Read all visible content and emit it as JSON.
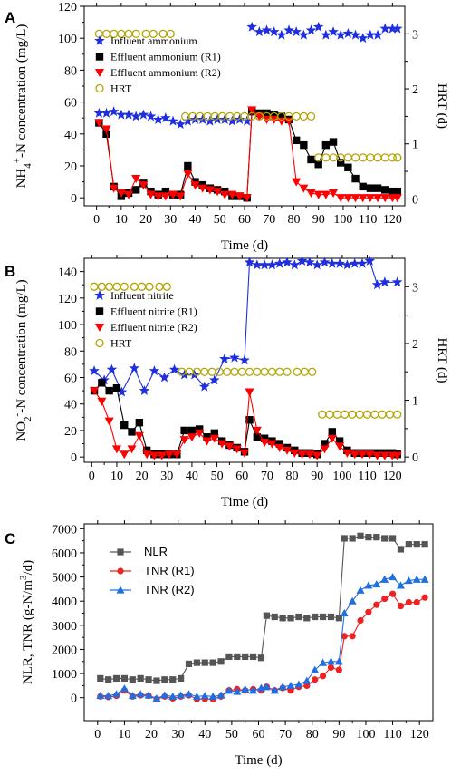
{
  "chart_data": [
    {
      "panel": "A",
      "type": "scatter",
      "xlabel": "Time (d)",
      "ylabel": "NH4+-N concentration (mg/L)",
      "ylabel_parts": {
        "pre": "NH",
        "sub": "4",
        "sup": "+",
        "post": "-N concentration (mg/L)"
      },
      "y2label": "HRT (d)",
      "xlim": [
        -5,
        125
      ],
      "ylim": [
        -5,
        120
      ],
      "y2lim": [
        -0.125,
        3.5
      ],
      "xticks": [
        0,
        10,
        20,
        30,
        40,
        50,
        60,
        70,
        80,
        90,
        100,
        110,
        120
      ],
      "yticks": [
        0,
        20,
        40,
        60,
        80,
        100,
        120
      ],
      "y2ticks": [
        0,
        1,
        2,
        3
      ],
      "series": [
        {
          "name": "Influent ammonium",
          "axis": "y",
          "marker": "star",
          "color": "#1f2fe0",
          "line": false,
          "x": [
            1,
            4,
            7,
            10,
            13,
            16,
            19,
            22,
            25,
            28,
            31,
            34,
            37,
            40,
            43,
            46,
            49,
            52,
            55,
            58,
            61,
            63,
            66,
            69,
            72,
            75,
            78,
            81,
            84,
            87,
            90,
            93,
            96,
            99,
            102,
            105,
            108,
            111,
            114,
            117,
            120,
            122
          ],
          "y": [
            53,
            53,
            54,
            52,
            52,
            51,
            52,
            51,
            49,
            50,
            48,
            46,
            48,
            49,
            49,
            48,
            49,
            49,
            48,
            49,
            48,
            107,
            104,
            105,
            104,
            102,
            105,
            104,
            102,
            105,
            107,
            102,
            104,
            102,
            103,
            102,
            100,
            102,
            102,
            106,
            106,
            106
          ]
        },
        {
          "name": "Effluent ammonium (R1)",
          "axis": "y",
          "marker": "square",
          "color": "#000000",
          "line": true,
          "x": [
            1,
            4,
            7,
            10,
            13,
            16,
            19,
            22,
            25,
            28,
            31,
            34,
            37,
            40,
            43,
            46,
            49,
            52,
            55,
            58,
            61,
            63,
            66,
            69,
            72,
            75,
            78,
            81,
            84,
            87,
            90,
            93,
            96,
            99,
            102,
            105,
            108,
            111,
            114,
            117,
            120,
            122
          ],
          "y": [
            47,
            40,
            7,
            1,
            3,
            5,
            9,
            4,
            2,
            4,
            2,
            2,
            20,
            10,
            8,
            6,
            5,
            4,
            1,
            1,
            0,
            54,
            53,
            53,
            52,
            51,
            49,
            36,
            33,
            24,
            21,
            33,
            35,
            22,
            19,
            12,
            7,
            6,
            6,
            5,
            4,
            4
          ]
        },
        {
          "name": "Effluent ammonium (R2)",
          "axis": "y",
          "marker": "triangle-down",
          "color": "#ff0000",
          "line": true,
          "x": [
            1,
            4,
            7,
            10,
            13,
            16,
            19,
            22,
            25,
            28,
            31,
            34,
            37,
            40,
            43,
            46,
            49,
            52,
            55,
            58,
            61,
            63,
            66,
            69,
            72,
            75,
            78,
            81,
            84,
            87,
            90,
            93,
            96,
            99,
            102,
            105,
            108,
            111,
            114,
            117,
            120,
            122
          ],
          "y": [
            47,
            43,
            6,
            3,
            2,
            12,
            8,
            2,
            1,
            1,
            2,
            1,
            15,
            8,
            6,
            5,
            4,
            2,
            2,
            1,
            0,
            55,
            51,
            49,
            49,
            48,
            48,
            10,
            6,
            3,
            2,
            2,
            3,
            0,
            0,
            0,
            0,
            0,
            0,
            0,
            0,
            0
          ]
        },
        {
          "name": "HRT",
          "axis": "y2",
          "marker": "circle-open",
          "color": "#b3a400",
          "line": false,
          "x": [
            1,
            4,
            7,
            10,
            13,
            16,
            20,
            23,
            27,
            30,
            36,
            39,
            42,
            45,
            48,
            51,
            54,
            57,
            60,
            63,
            66,
            69,
            72,
            75,
            78,
            81,
            84,
            87,
            90,
            93,
            96,
            99,
            102,
            105,
            108,
            111,
            114,
            117,
            120,
            122
          ],
          "y": [
            3,
            3,
            3,
            3,
            3,
            3,
            3,
            3,
            3,
            3,
            1.5,
            1.5,
            1.5,
            1.5,
            1.5,
            1.5,
            1.5,
            1.5,
            1.5,
            1.5,
            1.5,
            1.5,
            1.5,
            1.5,
            1.5,
            1.5,
            1.5,
            1.5,
            0.75,
            0.75,
            0.75,
            0.75,
            0.75,
            0.75,
            0.75,
            0.75,
            0.75,
            0.75,
            0.75,
            0.75
          ]
        }
      ]
    },
    {
      "panel": "B",
      "type": "scatter",
      "xlabel": "Time (d)",
      "ylabel": "NO2--N concentration (mg/L)",
      "ylabel_parts": {
        "pre": "NO",
        "sub": "2",
        "sup": "-",
        "post": "-N concentration (mg/L)"
      },
      "y2label": "HRT (d)",
      "xlim": [
        -3,
        125
      ],
      "ylim": [
        -4,
        150
      ],
      "y2lim": [
        -0.093,
        3.5
      ],
      "xticks": [
        0,
        10,
        20,
        30,
        40,
        50,
        60,
        70,
        80,
        90,
        100,
        110,
        120
      ],
      "yticks": [
        0,
        20,
        40,
        60,
        80,
        100,
        120,
        140
      ],
      "y2ticks": [
        0,
        1,
        2,
        3
      ],
      "series": [
        {
          "name": "Influent nitrite",
          "axis": "y",
          "marker": "star",
          "color": "#1f2fe0",
          "line": true,
          "x": [
            1,
            5,
            8,
            12,
            17,
            21,
            25,
            29,
            33,
            37,
            41,
            45,
            49,
            53,
            57,
            61,
            63,
            66,
            69,
            72,
            75,
            78,
            81,
            84,
            87,
            90,
            93,
            96,
            99,
            102,
            105,
            108,
            111,
            114,
            117,
            122
          ],
          "y": [
            65,
            58,
            66,
            49,
            67,
            50,
            65,
            60,
            66,
            62,
            62,
            53,
            58,
            74,
            75,
            73,
            147,
            145,
            145,
            145,
            146,
            147,
            145,
            148,
            147,
            145,
            147,
            146,
            146,
            145,
            146,
            146,
            148,
            130,
            132,
            132
          ]
        },
        {
          "name": "Effluent nitrite (R1)",
          "axis": "y",
          "marker": "square",
          "color": "#000000",
          "line": true,
          "x": [
            1,
            4,
            7,
            10,
            13,
            16,
            19,
            22,
            25,
            28,
            31,
            34,
            37,
            40,
            43,
            46,
            49,
            52,
            55,
            58,
            61,
            63,
            66,
            69,
            72,
            75,
            78,
            81,
            84,
            87,
            90,
            93,
            96,
            99,
            102,
            105,
            108,
            111,
            114,
            117,
            120,
            122
          ],
          "y": [
            50,
            56,
            50,
            52,
            24,
            19,
            26,
            5,
            2,
            2,
            2,
            2,
            20,
            20,
            21,
            15,
            18,
            12,
            9,
            7,
            4,
            28,
            15,
            14,
            12,
            10,
            7,
            5,
            3,
            3,
            2,
            10,
            19,
            12,
            5,
            3,
            3,
            3,
            3,
            3,
            3,
            2
          ]
        },
        {
          "name": "Effluent nitrite (R2)",
          "axis": "y",
          "marker": "triangle-down",
          "color": "#ff0000",
          "line": true,
          "x": [
            1,
            4,
            7,
            10,
            13,
            16,
            19,
            22,
            25,
            28,
            31,
            34,
            37,
            40,
            43,
            46,
            49,
            52,
            55,
            58,
            61,
            63,
            66,
            69,
            72,
            75,
            78,
            81,
            84,
            87,
            90,
            93,
            96,
            99,
            102,
            105,
            108,
            111,
            114,
            117,
            120,
            122
          ],
          "y": [
            50,
            42,
            27,
            6,
            2,
            6,
            16,
            2,
            1,
            1,
            2,
            2,
            13,
            15,
            18,
            12,
            14,
            10,
            8,
            6,
            3,
            49,
            20,
            11,
            10,
            7,
            5,
            3,
            2,
            2,
            1,
            6,
            14,
            8,
            3,
            2,
            2,
            2,
            1,
            1,
            1,
            1
          ]
        },
        {
          "name": "HRT",
          "axis": "y2",
          "marker": "circle-open",
          "color": "#b3a400",
          "line": false,
          "x": [
            1,
            4,
            7,
            10,
            13,
            17,
            20,
            23,
            27,
            30,
            36,
            39,
            42,
            45,
            48,
            51,
            54,
            57,
            60,
            63,
            66,
            69,
            72,
            75,
            78,
            82,
            85,
            88,
            92,
            95,
            98,
            101,
            104,
            107,
            110,
            113,
            116,
            119,
            122
          ],
          "y": [
            3,
            3,
            3,
            3,
            3,
            3,
            3,
            3,
            3,
            3,
            1.5,
            1.5,
            1.5,
            1.5,
            1.5,
            1.5,
            1.5,
            1.5,
            1.5,
            1.5,
            1.5,
            1.5,
            1.5,
            1.5,
            1.5,
            1.5,
            1.5,
            1.5,
            0.75,
            0.75,
            0.75,
            0.75,
            0.75,
            0.75,
            0.75,
            0.75,
            0.75,
            0.75,
            0.75
          ]
        }
      ]
    },
    {
      "panel": "C",
      "type": "line",
      "xlabel": "Time (d)",
      "ylabel": "NLR, TNR (g-N/m3/d)",
      "ylabel_parts": {
        "pre": "NLR, TNR (g-N/m",
        "sub": "",
        "sup": "3",
        "post": "/d)"
      },
      "xlim": [
        -5,
        125
      ],
      "ylim": [
        -950,
        7200
      ],
      "xticks": [
        0,
        10,
        20,
        30,
        40,
        50,
        60,
        70,
        80,
        90,
        100,
        110,
        120
      ],
      "yticks": [
        0,
        1000,
        2000,
        3000,
        4000,
        5000,
        6000,
        7000
      ],
      "series": [
        {
          "name": "NLR",
          "marker": "square",
          "color": "#555555",
          "line": true,
          "x": [
            1,
            4,
            7,
            10,
            13,
            16,
            19,
            22,
            25,
            28,
            31,
            34,
            37,
            40,
            43,
            46,
            49,
            52,
            55,
            58,
            61,
            63,
            66,
            69,
            72,
            75,
            78,
            81,
            84,
            87,
            90,
            92,
            95,
            98,
            101,
            104,
            107,
            110,
            113,
            116,
            119,
            122
          ],
          "y": [
            800,
            750,
            800,
            800,
            750,
            800,
            750,
            700,
            750,
            750,
            800,
            1400,
            1450,
            1450,
            1450,
            1500,
            1700,
            1700,
            1700,
            1700,
            1650,
            3400,
            3350,
            3300,
            3300,
            3350,
            3300,
            3350,
            3350,
            3350,
            3300,
            6600,
            6600,
            6700,
            6650,
            6650,
            6600,
            6600,
            6150,
            6350,
            6350,
            6350
          ]
        },
        {
          "name": "TNR (R1)",
          "marker": "circle",
          "color": "#ee2222",
          "line": true,
          "x": [
            1,
            4,
            7,
            10,
            13,
            16,
            19,
            22,
            25,
            28,
            31,
            34,
            37,
            40,
            43,
            46,
            49,
            52,
            55,
            58,
            61,
            63,
            66,
            69,
            72,
            75,
            78,
            81,
            84,
            87,
            90,
            92,
            95,
            98,
            101,
            104,
            107,
            110,
            113,
            116,
            119,
            122
          ],
          "y": [
            50,
            30,
            80,
            300,
            50,
            100,
            80,
            -50,
            50,
            -30,
            50,
            100,
            -50,
            -50,
            -50,
            50,
            300,
            350,
            300,
            350,
            300,
            450,
            300,
            400,
            300,
            450,
            500,
            750,
            900,
            1250,
            1150,
            2550,
            2550,
            3200,
            3550,
            3850,
            4100,
            4300,
            3800,
            3950,
            3950,
            4150
          ]
        },
        {
          "name": "TNR (R2)",
          "marker": "triangle-up",
          "color": "#1f6fe0",
          "line": true,
          "x": [
            1,
            4,
            7,
            10,
            13,
            16,
            19,
            22,
            25,
            28,
            31,
            34,
            37,
            40,
            43,
            46,
            49,
            52,
            55,
            58,
            61,
            63,
            66,
            69,
            72,
            75,
            78,
            81,
            84,
            87,
            90,
            92,
            95,
            98,
            101,
            104,
            107,
            110,
            113,
            116,
            119,
            122
          ],
          "y": [
            80,
            80,
            150,
            380,
            80,
            150,
            100,
            -30,
            100,
            50,
            100,
            150,
            50,
            80,
            50,
            100,
            300,
            250,
            350,
            300,
            400,
            450,
            300,
            450,
            500,
            550,
            700,
            1150,
            1450,
            1500,
            1500,
            3500,
            4000,
            4450,
            4650,
            4700,
            4900,
            5000,
            4650,
            4850,
            4900,
            4900
          ]
        }
      ]
    }
  ],
  "panel_letters": [
    "A",
    "B",
    "C"
  ]
}
